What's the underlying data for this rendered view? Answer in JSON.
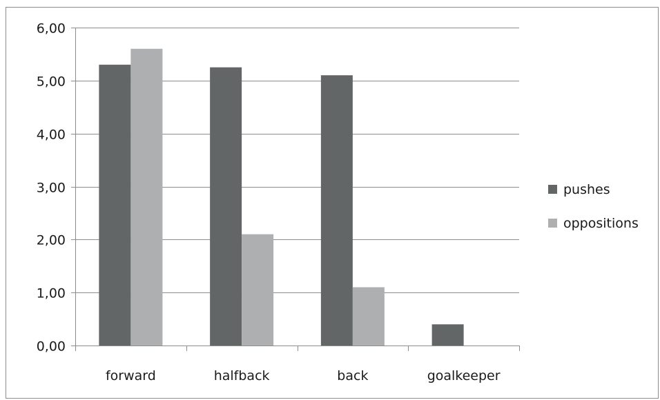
{
  "chart_data": {
    "type": "bar",
    "categories": [
      "forward",
      "halfback",
      "back",
      "goalkeeper"
    ],
    "series": [
      {
        "name": "pushes",
        "values": [
          5.3,
          5.25,
          5.1,
          0.4
        ],
        "color": "#636667"
      },
      {
        "name": "oppositions",
        "values": [
          5.6,
          2.1,
          1.1,
          0
        ],
        "color": "#aeafb0"
      }
    ],
    "y_ticks": [
      "0,00",
      "1,00",
      "2,00",
      "3,00",
      "4,00",
      "5,00",
      "6,00"
    ],
    "ylim": [
      0,
      6
    ],
    "grid": true,
    "gridline_color": "#8c8c8c",
    "legend_position": "right",
    "title": "",
    "xlabel": "",
    "ylabel": ""
  }
}
